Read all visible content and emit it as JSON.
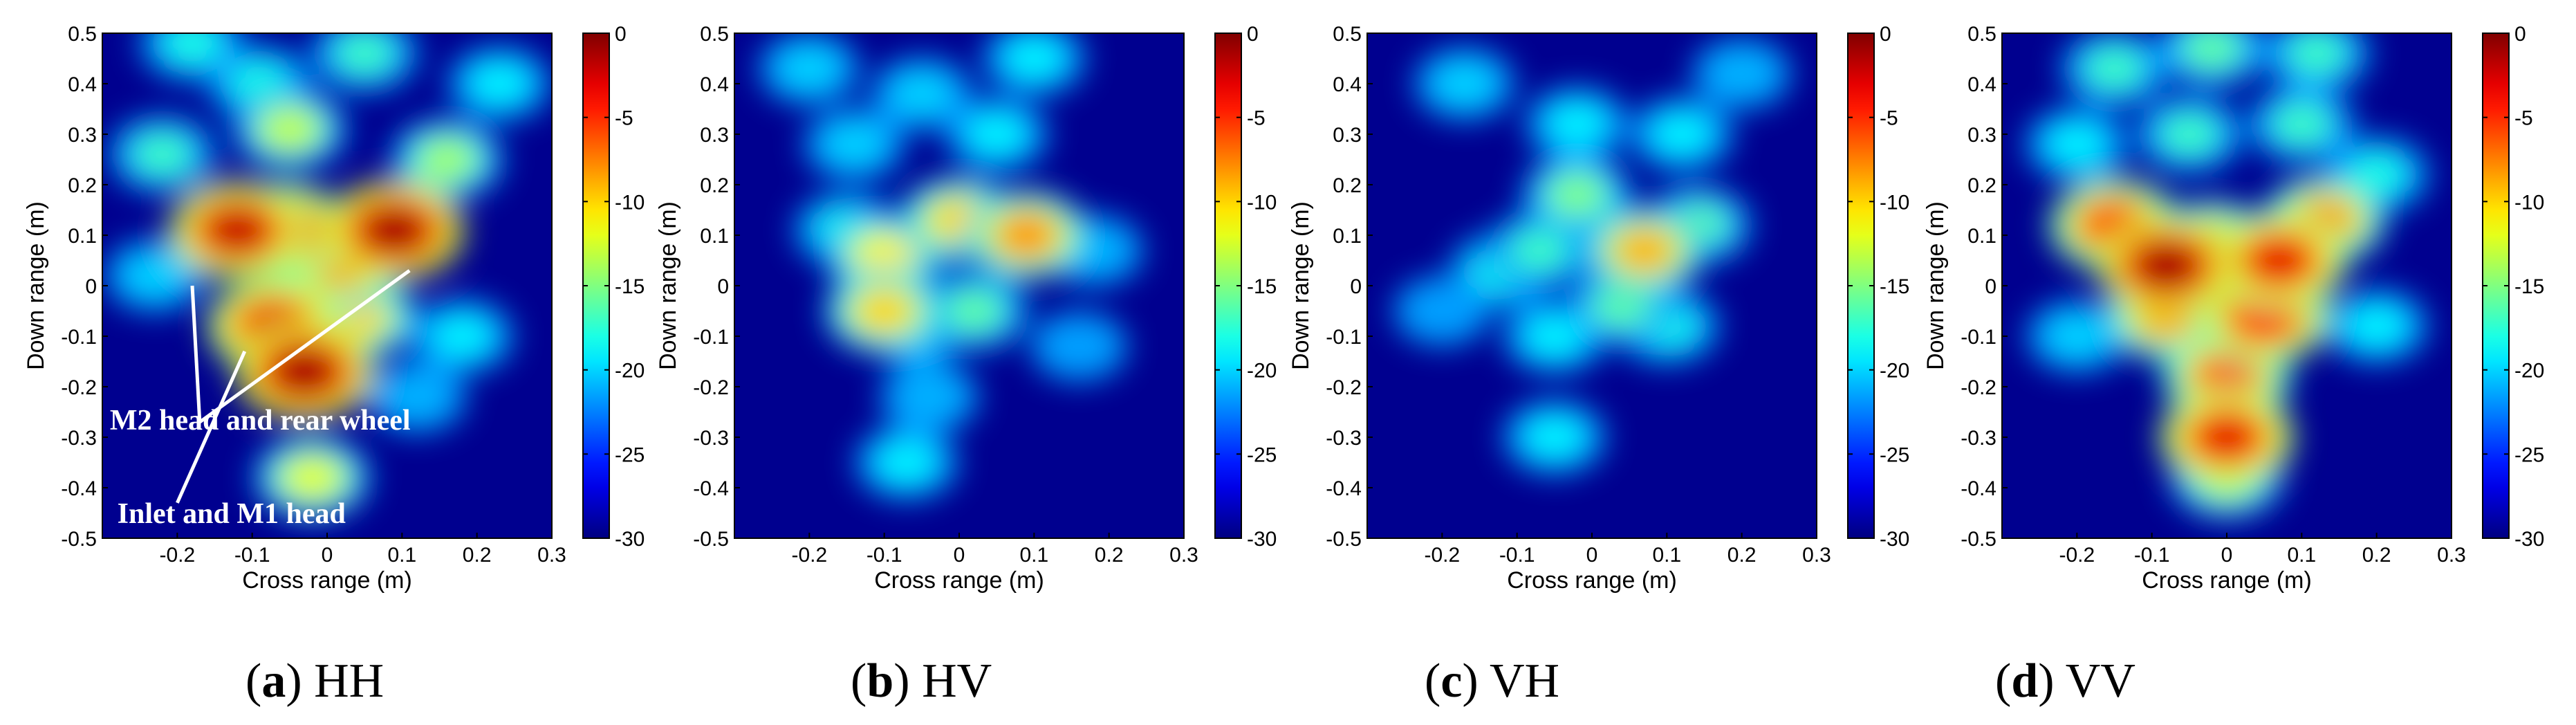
{
  "figure": {
    "panels": [
      {
        "letter": "a",
        "label": "HH",
        "caption_pre": "(",
        "caption_post": ") "
      },
      {
        "letter": "b",
        "label": "HV",
        "caption_pre": "(",
        "caption_post": ") "
      },
      {
        "letter": "c",
        "label": "VH",
        "caption_pre": "(",
        "caption_post": ") "
      },
      {
        "letter": "d",
        "label": "VV",
        "caption_pre": "(",
        "caption_post": ") "
      }
    ]
  },
  "colors": {
    "colormap": "jet",
    "background": "#00008f",
    "annotation": "#ffffff"
  },
  "chart_data": [
    {
      "type": "heatmap",
      "title": "",
      "xlabel": "Cross range (m)",
      "ylabel": "Down range (m)",
      "xlim": [
        -0.3,
        0.3
      ],
      "ylim": [
        -0.5,
        0.5
      ],
      "xticks": [
        -0.2,
        -0.1,
        0,
        0.1,
        0.2,
        0.3
      ],
      "yticks": [
        0.5,
        0.4,
        0.3,
        0.2,
        0.1,
        0,
        -0.1,
        -0.2,
        -0.3,
        -0.4,
        -0.5
      ],
      "colorbar": {
        "ticks": [
          0,
          -5,
          -10,
          -15,
          -20,
          -25,
          -30
        ],
        "range": [
          -30,
          0
        ]
      },
      "annotations": [
        "M2 head and rear wheel",
        "Inlet and M1 head"
      ],
      "blobs": [
        {
          "x": -0.12,
          "y": 0.11,
          "value": -2
        },
        {
          "x": -0.06,
          "y": 0.11,
          "value": -4
        },
        {
          "x": 0.09,
          "y": 0.11,
          "value": -1
        },
        {
          "x": 0.02,
          "y": 0.04,
          "value": -8
        },
        {
          "x": -0.03,
          "y": -0.17,
          "value": -1
        },
        {
          "x": -0.07,
          "y": -0.08,
          "value": -3
        },
        {
          "x": 0.04,
          "y": -0.06,
          "value": -10
        },
        {
          "x": -0.05,
          "y": 0.31,
          "value": -13
        },
        {
          "x": 0.16,
          "y": 0.25,
          "value": -14
        },
        {
          "x": -0.22,
          "y": 0.26,
          "value": -17
        },
        {
          "x": -0.02,
          "y": -0.38,
          "value": -12
        },
        {
          "x": -0.18,
          "y": 0.48,
          "value": -18
        },
        {
          "x": 0.05,
          "y": 0.46,
          "value": -17
        },
        {
          "x": -0.09,
          "y": 0.4,
          "value": -18
        },
        {
          "x": 0.23,
          "y": 0.4,
          "value": -19
        },
        {
          "x": 0.18,
          "y": -0.1,
          "value": -19
        },
        {
          "x": -0.23,
          "y": 0.02,
          "value": -20
        },
        {
          "x": 0.12,
          "y": -0.22,
          "value": -21
        }
      ]
    },
    {
      "type": "heatmap",
      "title": "",
      "xlabel": "Cross range (m)",
      "ylabel": "Down range (m)",
      "xlim": [
        -0.3,
        0.3
      ],
      "ylim": [
        -0.5,
        0.5
      ],
      "xticks": [
        -0.2,
        -0.1,
        0,
        0.1,
        0.2,
        0.3
      ],
      "yticks": [
        0.5,
        0.4,
        0.3,
        0.2,
        0.1,
        0,
        -0.1,
        -0.2,
        -0.3,
        -0.4,
        -0.5
      ],
      "colorbar": {
        "ticks": [
          0,
          -5,
          -10,
          -15,
          -20,
          -25,
          -30
        ],
        "range": [
          -30,
          0
        ]
      },
      "blobs": [
        {
          "x": 0.09,
          "y": 0.1,
          "value": -8
        },
        {
          "x": 0.0,
          "y": 0.13,
          "value": -10
        },
        {
          "x": -0.1,
          "y": 0.06,
          "value": -11
        },
        {
          "x": -0.1,
          "y": -0.05,
          "value": -10
        },
        {
          "x": -0.06,
          "y": -0.08,
          "value": -16
        },
        {
          "x": 0.02,
          "y": -0.05,
          "value": -16
        },
        {
          "x": -0.15,
          "y": 0.11,
          "value": -18
        },
        {
          "x": -0.14,
          "y": 0.28,
          "value": -20
        },
        {
          "x": 0.05,
          "y": 0.3,
          "value": -19
        },
        {
          "x": -0.2,
          "y": 0.43,
          "value": -20
        },
        {
          "x": 0.1,
          "y": 0.45,
          "value": -19
        },
        {
          "x": -0.05,
          "y": 0.38,
          "value": -20
        },
        {
          "x": -0.07,
          "y": -0.35,
          "value": -19
        },
        {
          "x": -0.04,
          "y": -0.22,
          "value": -21
        },
        {
          "x": 0.18,
          "y": 0.07,
          "value": -21
        },
        {
          "x": 0.16,
          "y": -0.12,
          "value": -22
        }
      ]
    },
    {
      "type": "heatmap",
      "title": "",
      "xlabel": "Cross range (m)",
      "ylabel": "Down range (m)",
      "xlim": [
        -0.3,
        0.3
      ],
      "ylim": [
        -0.5,
        0.5
      ],
      "xticks": [
        -0.2,
        -0.1,
        0,
        0.1,
        0.2,
        0.3
      ],
      "yticks": [
        0.5,
        0.4,
        0.3,
        0.2,
        0.1,
        0,
        -0.1,
        -0.2,
        -0.3,
        -0.4,
        -0.5
      ],
      "colorbar": {
        "ticks": [
          0,
          -5,
          -10,
          -15,
          -20,
          -25,
          -30
        ],
        "range": [
          -30,
          0
        ]
      },
      "blobs": [
        {
          "x": 0.07,
          "y": 0.07,
          "value": -9
        },
        {
          "x": 0.14,
          "y": 0.12,
          "value": -16
        },
        {
          "x": -0.07,
          "y": 0.07,
          "value": -17
        },
        {
          "x": -0.02,
          "y": 0.18,
          "value": -15
        },
        {
          "x": 0.04,
          "y": -0.04,
          "value": -16
        },
        {
          "x": -0.12,
          "y": 0.03,
          "value": -18
        },
        {
          "x": -0.05,
          "y": -0.1,
          "value": -19
        },
        {
          "x": 0.1,
          "y": -0.08,
          "value": -18
        },
        {
          "x": -0.02,
          "y": 0.32,
          "value": -19
        },
        {
          "x": -0.17,
          "y": 0.4,
          "value": -20
        },
        {
          "x": 0.12,
          "y": 0.3,
          "value": -19
        },
        {
          "x": -0.05,
          "y": -0.3,
          "value": -19
        },
        {
          "x": 0.2,
          "y": 0.42,
          "value": -21
        },
        {
          "x": -0.2,
          "y": -0.05,
          "value": -22
        }
      ]
    },
    {
      "type": "heatmap",
      "title": "",
      "xlabel": "Cross range (m)",
      "ylabel": "Down range (m)",
      "xlim": [
        -0.3,
        0.3
      ],
      "ylim": [
        -0.5,
        0.5
      ],
      "xticks": [
        -0.2,
        -0.1,
        0,
        0.1,
        0.2,
        0.3
      ],
      "yticks": [
        0.5,
        0.4,
        0.3,
        0.2,
        0.1,
        0,
        -0.1,
        -0.2,
        -0.3,
        -0.4,
        -0.5
      ],
      "colorbar": {
        "ticks": [
          0,
          -5,
          -10,
          -15,
          -20,
          -25,
          -30
        ],
        "range": [
          -30,
          0
        ]
      },
      "blobs": [
        {
          "x": -0.08,
          "y": 0.04,
          "value": -1
        },
        {
          "x": 0.07,
          "y": 0.05,
          "value": -3
        },
        {
          "x": -0.02,
          "y": 0.08,
          "value": -8
        },
        {
          "x": -0.15,
          "y": 0.12,
          "value": -5
        },
        {
          "x": 0.13,
          "y": 0.13,
          "value": -8
        },
        {
          "x": 0.05,
          "y": -0.06,
          "value": -4
        },
        {
          "x": -0.08,
          "y": -0.06,
          "value": -8
        },
        {
          "x": 0.0,
          "y": -0.18,
          "value": -6
        },
        {
          "x": 0.0,
          "y": -0.3,
          "value": -3
        },
        {
          "x": 0.0,
          "y": -0.38,
          "value": -13
        },
        {
          "x": -0.05,
          "y": 0.3,
          "value": -17
        },
        {
          "x": 0.1,
          "y": 0.32,
          "value": -17
        },
        {
          "x": -0.15,
          "y": 0.43,
          "value": -17
        },
        {
          "x": 0.12,
          "y": 0.46,
          "value": -17
        },
        {
          "x": -0.02,
          "y": 0.47,
          "value": -16
        },
        {
          "x": -0.2,
          "y": 0.28,
          "value": -19
        },
        {
          "x": 0.2,
          "y": 0.22,
          "value": -18
        },
        {
          "x": 0.2,
          "y": -0.08,
          "value": -19
        },
        {
          "x": -0.2,
          "y": -0.1,
          "value": -20
        }
      ]
    }
  ]
}
